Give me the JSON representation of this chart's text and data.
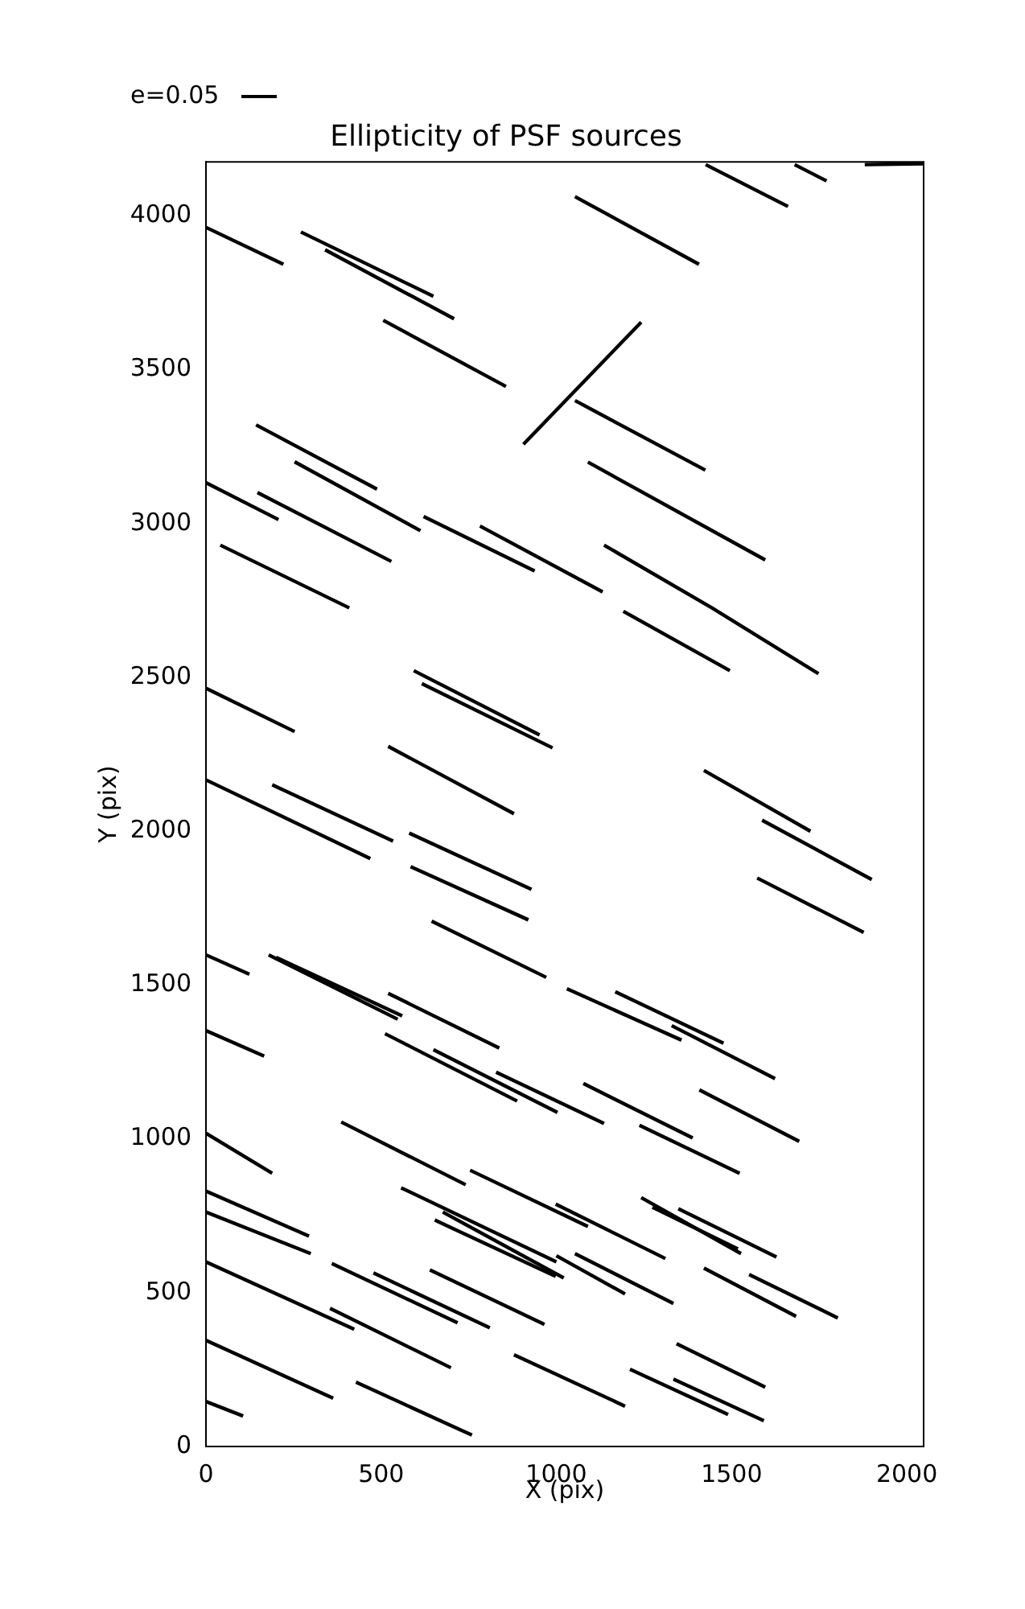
{
  "chart_data": {
    "type": "line",
    "title": "Ellipticity of PSF sources",
    "xlabel": "X (pix)",
    "ylabel": "Y (pix)",
    "annotations": [
      "e=0.05"
    ],
    "xlim": [
      0,
      2048
    ],
    "ylim": [
      0,
      4176
    ],
    "xticks": [
      0,
      500,
      1000,
      1500,
      2000
    ],
    "yticks": [
      0,
      500,
      1000,
      1500,
      2000,
      2500,
      3000,
      3500,
      4000
    ],
    "marker": "none",
    "line_style": "solid",
    "series": [
      {
        "color": "#000000",
        "x": [
          0,
          221
        ],
        "values": [
          3963,
          3843
        ]
      },
      {
        "color": "#000000",
        "x": [
          271,
          649
        ],
        "values": [
          3948,
          3739
        ]
      },
      {
        "color": "#000000",
        "x": [
          340,
          708
        ],
        "values": [
          3890,
          3666
        ]
      },
      {
        "color": "#000000",
        "x": [
          506,
          856
        ],
        "values": [
          3661,
          3446
        ]
      },
      {
        "color": "#000000",
        "x": [
          906,
          1242
        ],
        "values": [
          3258,
          3655
        ]
      },
      {
        "color": "#000000",
        "x": [
          1053,
          1407
        ],
        "values": [
          4063,
          3843
        ]
      },
      {
        "color": "#000000",
        "x": [
          1426,
          1661
        ],
        "values": [
          4167,
          4031
        ]
      },
      {
        "color": "#000000",
        "x": [
          1680,
          1771
        ],
        "values": [
          4167,
          4114
        ]
      },
      {
        "color": "#000000",
        "x": [
          1880,
          2047
        ],
        "values": [
          4167,
          4170
        ]
      },
      {
        "color": "#000000",
        "x": [
          1053,
          1425
        ],
        "values": [
          3400,
          3174
        ]
      },
      {
        "color": "#000000",
        "x": [
          143,
          488
        ],
        "values": [
          3321,
          3112
        ]
      },
      {
        "color": "#000000",
        "x": [
          253,
          612
        ],
        "values": [
          3201,
          2977
        ]
      },
      {
        "color": "#000000",
        "x": [
          0,
          207
        ],
        "values": [
          3133,
          3013
        ]
      },
      {
        "color": "#000000",
        "x": [
          147,
          529
        ],
        "values": [
          3101,
          2877
        ]
      },
      {
        "color": "#000000",
        "x": [
          41,
          409
        ],
        "values": [
          2930,
          2726
        ]
      },
      {
        "color": "#000000",
        "x": [
          621,
          938
        ],
        "values": [
          3023,
          2846
        ]
      },
      {
        "color": "#000000",
        "x": [
          782,
          1132
        ],
        "values": [
          2992,
          2778
        ]
      },
      {
        "color": "#000000",
        "x": [
          1090,
          1596
        ],
        "values": [
          3200,
          2882
        ]
      },
      {
        "color": "#000000",
        "x": [
          1136,
          1444,
          1748
        ],
        "values": [
          2930,
          2726,
          2512
        ]
      },
      {
        "color": "#000000",
        "x": [
          1191,
          1495
        ],
        "values": [
          2715,
          2522
        ]
      },
      {
        "color": "#000000",
        "x": [
          0,
          253
        ],
        "values": [
          2465,
          2324
        ]
      },
      {
        "color": "#000000",
        "x": [
          593,
          952
        ],
        "values": [
          2522,
          2313
        ]
      },
      {
        "color": "#000000",
        "x": [
          616,
          989
        ],
        "values": [
          2480,
          2271
        ]
      },
      {
        "color": "#000000",
        "x": [
          520,
          879
        ],
        "values": [
          2276,
          2057
        ]
      },
      {
        "color": "#000000",
        "x": [
          1421,
          1725
        ],
        "values": [
          2198,
          2000
        ]
      },
      {
        "color": "#000000",
        "x": [
          1587,
          1900
        ],
        "values": [
          2036,
          1843
        ]
      },
      {
        "color": "#000000",
        "x": [
          1573,
          1877
        ],
        "values": [
          1848,
          1671
        ]
      },
      {
        "color": "#000000",
        "x": [
          0,
          469
        ],
        "values": [
          2167,
          1911
        ]
      },
      {
        "color": "#000000",
        "x": [
          189,
          534
        ],
        "values": [
          2151,
          1968
        ]
      },
      {
        "color": "#000000",
        "x": [
          580,
          929
        ],
        "values": [
          1994,
          1811
        ]
      },
      {
        "color": "#000000",
        "x": [
          584,
          920
        ],
        "values": [
          1885,
          1712
        ]
      },
      {
        "color": "#000000",
        "x": [
          644,
          971
        ],
        "values": [
          1708,
          1525
        ]
      },
      {
        "color": "#000000",
        "x": [
          0,
          124
        ],
        "values": [
          1598,
          1535
        ]
      },
      {
        "color": "#000000",
        "x": [
          179,
          547
        ],
        "values": [
          1598,
          1389
        ]
      },
      {
        "color": "#000000",
        "x": [
          200,
          560
        ],
        "values": [
          1590,
          1400
        ]
      },
      {
        "color": "#000000",
        "x": [
          520,
          837
        ],
        "values": [
          1473,
          1295
        ]
      },
      {
        "color": "#000000",
        "x": [
          1030,
          1357
        ],
        "values": [
          1488,
          1321
        ]
      },
      {
        "color": "#000000",
        "x": [
          1168,
          1477
        ],
        "values": [
          1478,
          1311
        ]
      },
      {
        "color": "#000000",
        "x": [
          1329,
          1624
        ],
        "values": [
          1368,
          1196
        ]
      },
      {
        "color": "#000000",
        "x": [
          0,
          166
        ],
        "values": [
          1352,
          1269
        ]
      },
      {
        "color": "#000000",
        "x": [
          511,
          888
        ],
        "values": [
          1342,
          1123
        ]
      },
      {
        "color": "#000000",
        "x": [
          649,
          1003
        ],
        "values": [
          1290,
          1086
        ]
      },
      {
        "color": "#000000",
        "x": [
          828,
          1136
        ],
        "values": [
          1217,
          1050
        ]
      },
      {
        "color": "#000000",
        "x": [
          1077,
          1389
        ],
        "values": [
          1180,
          1003
        ]
      },
      {
        "color": "#000000",
        "x": [
          1408,
          1693
        ],
        "values": [
          1159,
          992
        ]
      },
      {
        "color": "#000000",
        "x": [
          1237,
          1523
        ],
        "values": [
          1044,
          888
        ]
      },
      {
        "color": "#000000",
        "x": [
          386,
          741
        ],
        "values": [
          1055,
          851
        ]
      },
      {
        "color": "#000000",
        "x": [
          754,
          1090
        ],
        "values": [
          898,
          715
        ]
      },
      {
        "color": "#000000",
        "x": [
          998,
          1311
        ],
        "values": [
          788,
          611
        ]
      },
      {
        "color": "#000000",
        "x": [
          0,
          189
        ],
        "values": [
          1018,
          888
        ]
      },
      {
        "color": "#000000",
        "x": [
          0,
          294
        ],
        "values": [
          830,
          684
        ]
      },
      {
        "color": "#000000",
        "x": [
          0,
          299
        ],
        "values": [
          762,
          627
        ]
      },
      {
        "color": "#000000",
        "x": [
          557,
          1000
        ],
        "values": [
          841,
          600
        ]
      },
      {
        "color": "#000000",
        "x": [
          676,
          1021
        ],
        "values": [
          762,
          548
        ]
      },
      {
        "color": "#000000",
        "x": [
          653,
          998
        ],
        "values": [
          736,
          553
        ]
      },
      {
        "color": "#000000",
        "x": [
          1242,
          1527
        ],
        "values": [
          809,
          627
        ]
      },
      {
        "color": "#000000",
        "x": [
          1274,
          1518
        ],
        "values": [
          778,
          642
        ]
      },
      {
        "color": "#000000",
        "x": [
          1348,
          1628
        ],
        "values": [
          773,
          616
        ]
      },
      {
        "color": "#000000",
        "x": [
          1000,
          1196
        ],
        "values": [
          620,
          496
        ]
      },
      {
        "color": "#000000",
        "x": [
          1053,
          1334
        ],
        "values": [
          627,
          465
        ]
      },
      {
        "color": "#000000",
        "x": [
          1421,
          1684
        ],
        "values": [
          580,
          423
        ]
      },
      {
        "color": "#000000",
        "x": [
          1550,
          1803
        ],
        "values": [
          559,
          418
        ]
      },
      {
        "color": "#000000",
        "x": [
          0,
          423
        ],
        "values": [
          600,
          381
        ]
      },
      {
        "color": "#000000",
        "x": [
          359,
          718
        ],
        "values": [
          595,
          402
        ]
      },
      {
        "color": "#000000",
        "x": [
          478,
          810
        ],
        "values": [
          564,
          386
        ]
      },
      {
        "color": "#000000",
        "x": [
          639,
          966
        ],
        "values": [
          574,
          397
        ]
      },
      {
        "color": "#000000",
        "x": [
          354,
          699
        ],
        "values": [
          449,
          256
        ]
      },
      {
        "color": "#000000",
        "x": [
          0,
          363
        ],
        "values": [
          345,
          157
        ]
      },
      {
        "color": "#000000",
        "x": [
          428,
          759
        ],
        "values": [
          209,
          37
        ]
      },
      {
        "color": "#000000",
        "x": [
          0,
          106
        ],
        "values": [
          146,
          99
        ]
      },
      {
        "color": "#000000",
        "x": [
          879,
          1196
        ],
        "values": [
          298,
          131
        ]
      },
      {
        "color": "#000000",
        "x": [
          1343,
          1596
        ],
        "values": [
          334,
          193
        ]
      },
      {
        "color": "#000000",
        "x": [
          1210,
          1490
        ],
        "values": [
          251,
          104
        ]
      },
      {
        "color": "#000000",
        "x": [
          1334,
          1592
        ],
        "values": [
          219,
          84
        ]
      }
    ]
  }
}
